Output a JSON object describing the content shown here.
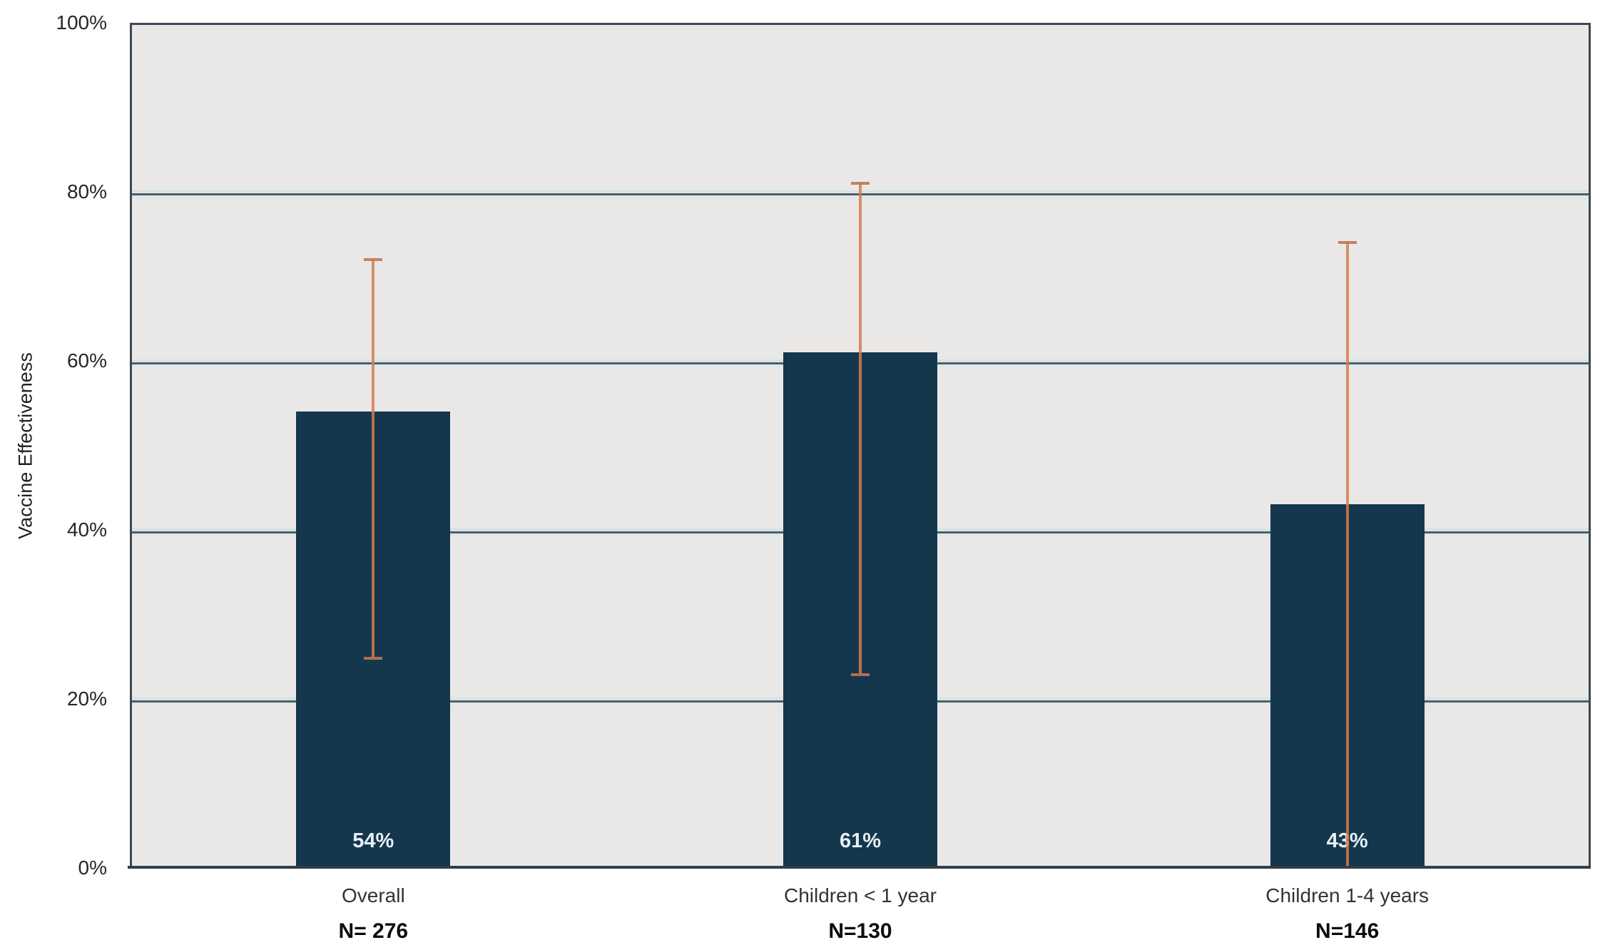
{
  "chart_data": {
    "type": "bar",
    "title": "",
    "xlabel": "",
    "ylabel": "Vaccine Effectiveness",
    "ylim": [
      0,
      100
    ],
    "yticks": [
      {
        "value": 0,
        "label": "0%"
      },
      {
        "value": 20,
        "label": "20%"
      },
      {
        "value": 40,
        "label": "40%"
      },
      {
        "value": 60,
        "label": "60%"
      },
      {
        "value": 80,
        "label": "80%"
      },
      {
        "value": 100,
        "label": "100%"
      }
    ],
    "grid": "horizontal",
    "legend": "none",
    "plot_background": "#e9e8e7",
    "categories": [
      "Overall",
      "Children < 1 year",
      "Children 1-4 years"
    ],
    "n_labels": [
      "N= 276",
      "N=130",
      "N=146"
    ],
    "series": [
      {
        "name": "Vaccine Effectiveness",
        "values": [
          54,
          61,
          43
        ],
        "value_labels": [
          "54%",
          "61%",
          "43%"
        ],
        "error_bars": [
          {
            "low": 25,
            "high": 72
          },
          {
            "low": 23,
            "high": 81
          },
          {
            "low": 0,
            "high": 74
          }
        ]
      }
    ],
    "colors": {
      "bar_fill": "#14374e",
      "error_bar": "#d57d4f",
      "gridline": "#4a5f66",
      "value_label_text": "#e9eff3",
      "axis_text": "#262626"
    }
  }
}
